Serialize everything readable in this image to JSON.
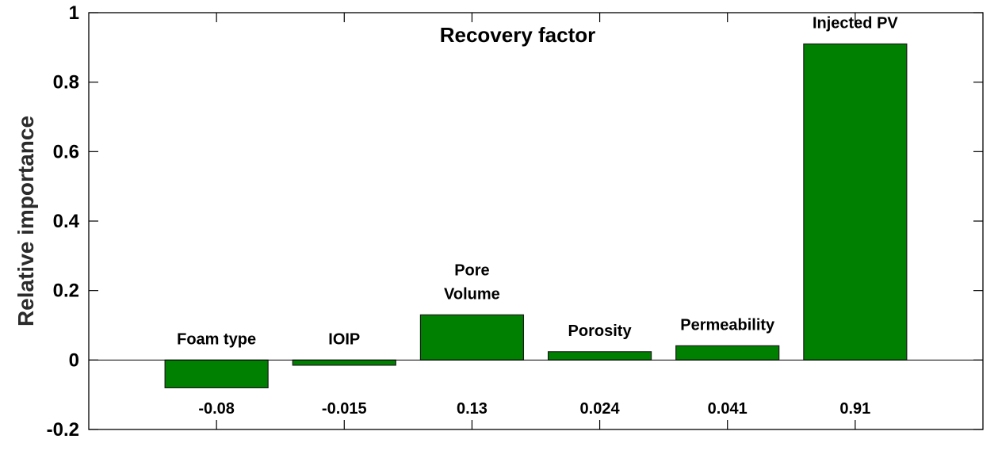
{
  "chart_data": {
    "type": "bar",
    "title": "Recovery factor",
    "xlabel": "",
    "ylabel": "Relative importance",
    "ylim": [
      -0.2,
      1
    ],
    "yticks": [
      "-0.2",
      "0",
      "0.2",
      "0.4",
      "0.6",
      "0.8",
      "1"
    ],
    "grid": false,
    "categories": [
      [
        "Foam type"
      ],
      [
        "IOIP"
      ],
      [
        "Pore",
        "Volume"
      ],
      [
        "Porosity"
      ],
      [
        "Permeability"
      ],
      [
        "Injected PV"
      ]
    ],
    "values": [
      -0.08,
      -0.015,
      0.13,
      0.024,
      0.041,
      0.91
    ],
    "value_labels": [
      "-0.08",
      "-0.015",
      "0.13",
      "0.024",
      "0.041",
      "0.91"
    ],
    "bar_color": "#008000",
    "edge_color": "#1a1a1a"
  }
}
